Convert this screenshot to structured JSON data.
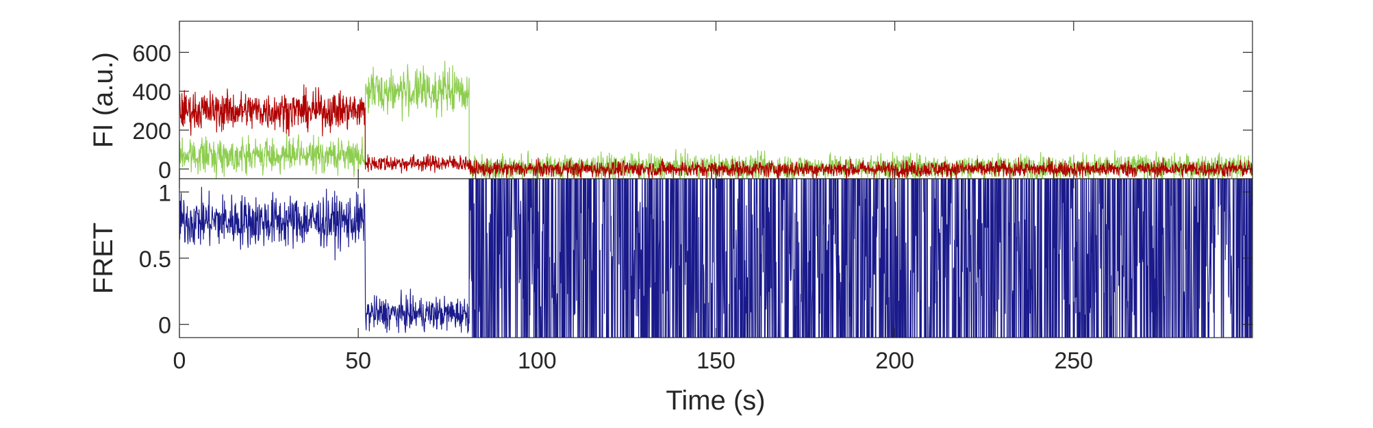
{
  "chart_data": [
    {
      "type": "line",
      "ylabel": "FI (a.u.)",
      "xlabel": "",
      "xlim": [
        0,
        300
      ],
      "ylim": [
        -50,
        760
      ],
      "yticks": [
        0,
        200,
        400,
        600
      ],
      "ytick_labels": [
        "0",
        "200",
        "400",
        "600"
      ],
      "xtick_labels_shown": false,
      "colors": {
        "donor": "#8dcd4f",
        "acceptor": "#b00000"
      },
      "series": [
        {
          "color_key": "donor",
          "segments": [
            {
              "x_start": 0,
              "x_end": 52,
              "mean": 70,
              "noise": 60
            },
            {
              "x_start": 52,
              "x_end": 81,
              "mean": 400,
              "noise": 80
            },
            {
              "x_start": 81,
              "x_end": 300,
              "mean": 10,
              "noise": 45
            }
          ]
        },
        {
          "color_key": "acceptor",
          "segments": [
            {
              "x_start": 0,
              "x_end": 52,
              "mean": 300,
              "noise": 70
            },
            {
              "x_start": 52,
              "x_end": 81,
              "mean": 30,
              "noise": 30
            },
            {
              "x_start": 81,
              "x_end": 300,
              "mean": 0,
              "noise": 30
            }
          ]
        }
      ]
    },
    {
      "type": "line",
      "ylabel": "FRET",
      "xlabel": "Time (s)",
      "xlim": [
        0,
        300
      ],
      "ylim": [
        -0.1,
        1.1
      ],
      "yticks": [
        0,
        0.5,
        1
      ],
      "ytick_labels": [
        "0",
        "0.5",
        "1"
      ],
      "xticks": [
        0,
        50,
        100,
        150,
        200,
        250
      ],
      "xtick_labels": [
        "0",
        "50",
        "100",
        "150",
        "200",
        "250"
      ],
      "colors": {
        "fret": "#1a1a8c"
      },
      "series": [
        {
          "color_key": "fret",
          "segments": [
            {
              "x_start": 0,
              "x_end": 52,
              "mean": 0.78,
              "noise": 0.14
            },
            {
              "x_start": 52,
              "x_end": 81,
              "mean": 0.08,
              "noise": 0.09
            },
            {
              "x_start": 81,
              "x_end": 300,
              "mean": 0.5,
              "noise": 0.6,
              "behavior": "erratic"
            }
          ]
        }
      ]
    }
  ]
}
